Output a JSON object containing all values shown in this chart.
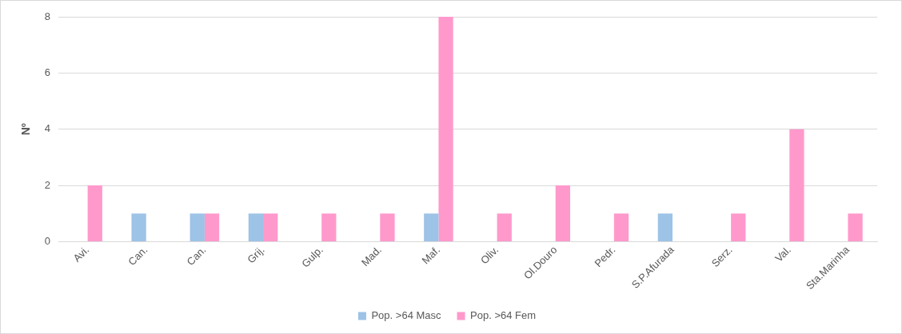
{
  "chart_data": {
    "type": "bar",
    "ylabel": "Nº",
    "categories": [
      "Avi.",
      "Can.",
      "Can.",
      "Grij.",
      "Gulp.",
      "Mad.",
      "Maf.",
      "Oliv.",
      "Ol.Douro",
      "Pedr.",
      "S.P.Afurada",
      "Serz.",
      "Val.",
      "Sta.Marinha"
    ],
    "series": [
      {
        "name": "Pop. >64 Masc",
        "color": "#9dc3e6",
        "values": [
          0,
          1,
          1,
          1,
          0,
          0,
          1,
          0,
          0,
          0,
          1,
          0,
          0,
          0
        ]
      },
      {
        "name": "Pop. >64 Fem",
        "color": "#ff99cc",
        "values": [
          2,
          0,
          1,
          1,
          1,
          1,
          8,
          1,
          2,
          1,
          0,
          1,
          4,
          1
        ]
      }
    ],
    "ylim": [
      0,
      8
    ],
    "yticks": [
      0,
      2,
      4,
      6,
      8
    ],
    "grid": "y",
    "legend": "bottom"
  }
}
